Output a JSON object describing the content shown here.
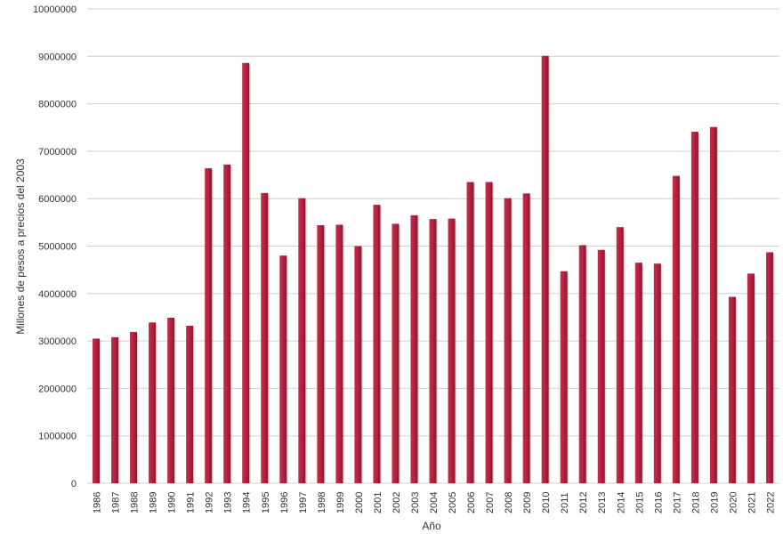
{
  "chart_data": {
    "type": "bar",
    "title": "",
    "xlabel": "Año",
    "ylabel": "Millones de pesos a precios del 2003",
    "ylim": [
      0,
      10000000
    ],
    "yticks": [
      "0",
      "1000000",
      "2000000",
      "3000000",
      "4000000",
      "5000000",
      "6000000",
      "7000000",
      "8000000",
      "9000000",
      "10000000"
    ],
    "grid": true,
    "bar_color": "#b5213f",
    "categories": [
      "1986",
      "1987",
      "1988",
      "1989",
      "1990",
      "1991",
      "1992",
      "1993",
      "1994",
      "1995",
      "1996",
      "1997",
      "1998",
      "1999",
      "2000",
      "2001",
      "2002",
      "2003",
      "2004",
      "2005",
      "2006",
      "2007",
      "2008",
      "2009",
      "2010",
      "2011",
      "2012",
      "2013",
      "2014",
      "2015",
      "2016",
      "2017",
      "2018",
      "2019",
      "2020",
      "2021",
      "2022"
    ],
    "values": [
      3050000,
      3080000,
      3190000,
      3390000,
      3490000,
      3320000,
      6640000,
      6720000,
      8860000,
      6120000,
      4800000,
      6010000,
      5440000,
      5450000,
      5000000,
      5870000,
      5470000,
      5650000,
      5570000,
      5580000,
      6350000,
      6350000,
      6010000,
      6110000,
      9010000,
      4470000,
      5020000,
      4920000,
      5400000,
      4650000,
      4630000,
      6480000,
      7410000,
      7510000,
      3930000,
      4420000,
      4870000
    ]
  }
}
